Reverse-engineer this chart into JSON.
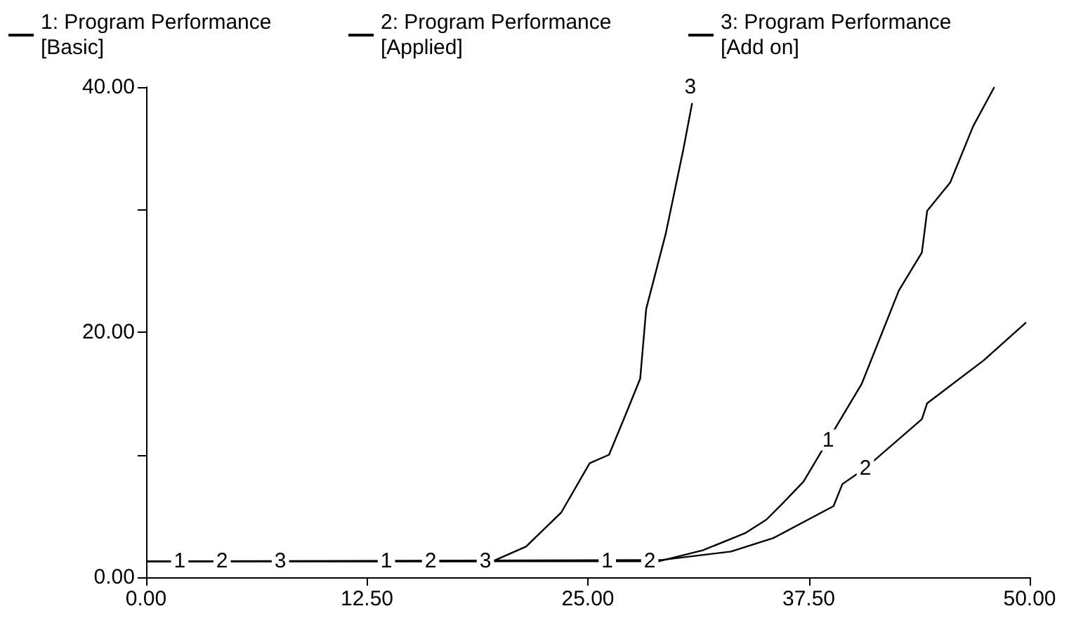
{
  "chart_data": {
    "type": "line",
    "legend": "top",
    "grid": false,
    "marker": "none",
    "line_style": "solid",
    "xlim": [
      0,
      50
    ],
    "ylim": [
      0,
      40
    ],
    "xticks": [
      {
        "value": 0,
        "label": "0.00"
      },
      {
        "value": 12.5,
        "label": "12.50"
      },
      {
        "value": 25,
        "label": "25.00"
      },
      {
        "value": 37.5,
        "label": "37.50"
      },
      {
        "value": 50,
        "label": "50.00"
      }
    ],
    "yticks": [
      {
        "value": 0,
        "label": "0.00"
      },
      {
        "value": 10,
        "label": null
      },
      {
        "value": 20,
        "label": "20.00"
      },
      {
        "value": 30,
        "label": null
      },
      {
        "value": 40,
        "label": "40.00"
      }
    ],
    "series": [
      {
        "name": "1: Program Performance\n[Basic]",
        "color": "#000000",
        "x": [
          0,
          29,
          31.5,
          33.9,
          35.1,
          36,
          37.2,
          38.6,
          40.5,
          42.6,
          43.9,
          44.2,
          45.5,
          46.8,
          48
        ],
        "values": [
          1.3,
          1.3,
          2.2,
          3.6,
          4.7,
          6,
          7.8,
          11.2,
          15.8,
          23.4,
          26.5,
          29.9,
          32.2,
          36.8,
          40
        ]
      },
      {
        "name": "2: Program Performance\n[Applied]",
        "color": "#000000",
        "x": [
          0,
          29.1,
          33.1,
          35.5,
          38.9,
          39.4,
          40.7,
          43.9,
          44.2,
          47.4,
          49.8
        ],
        "values": [
          1.3,
          1.4,
          2.1,
          3.2,
          5.8,
          7.6,
          8.9,
          12.9,
          14.2,
          17.7,
          20.8
        ]
      },
      {
        "name": "3: Program Performance\n[Add on]",
        "color": "#000000",
        "x": [
          0,
          17.5,
          19.6,
          21.5,
          23.5,
          25.1,
          26.2,
          27.2,
          27.96,
          28.3,
          29.4,
          30.4,
          30.9
        ],
        "values": [
          1.3,
          1.3,
          1.3,
          2.5,
          5.3,
          9.3,
          10,
          13.5,
          16.2,
          21.9,
          28,
          34.9,
          38.7
        ]
      }
    ],
    "annotations": [
      {
        "text": "1",
        "x": 1.9,
        "y": 1.3
      },
      {
        "text": "2",
        "x": 4.3,
        "y": 1.3
      },
      {
        "text": "3",
        "x": 7.6,
        "y": 1.3
      },
      {
        "text": "1",
        "x": 13.6,
        "y": 1.3
      },
      {
        "text": "2",
        "x": 16.1,
        "y": 1.3
      },
      {
        "text": "3",
        "x": 19.2,
        "y": 1.3
      },
      {
        "text": "1",
        "x": 26.1,
        "y": 1.3
      },
      {
        "text": "2",
        "x": 28.5,
        "y": 1.3
      },
      {
        "text": "3",
        "x": 30.8,
        "y": 40
      },
      {
        "text": "1",
        "x": 38.6,
        "y": 11.2
      },
      {
        "text": "2",
        "x": 40.7,
        "y": 8.9
      }
    ]
  }
}
